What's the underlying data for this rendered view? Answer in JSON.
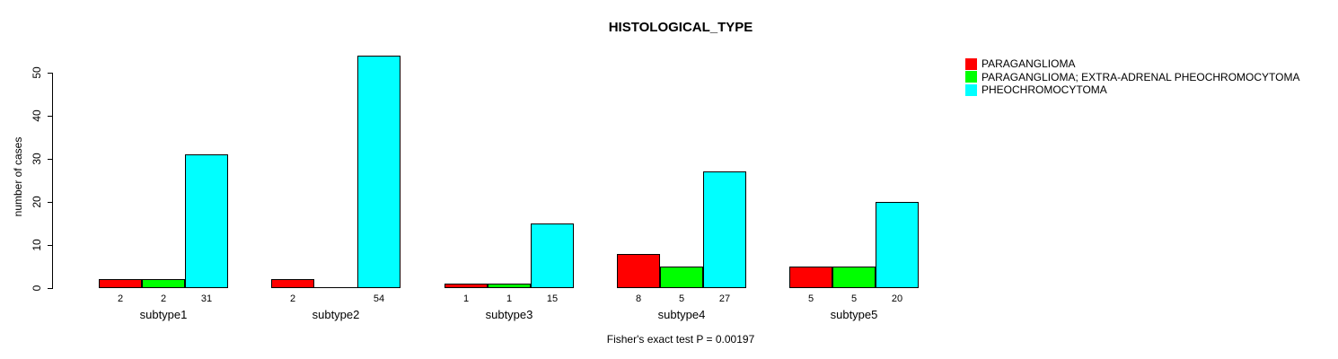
{
  "title": "HISTOLOGICAL_TYPE",
  "footer": "Fisher's exact test P = 0.00197",
  "y_axis": {
    "label": "number of cases",
    "ticks": [
      0,
      10,
      20,
      30,
      40,
      50
    ]
  },
  "x_axis": {
    "categories": [
      "subtype1",
      "subtype2",
      "subtype3",
      "subtype4",
      "subtype5"
    ]
  },
  "legend": {
    "items": [
      {
        "label": "PARAGANGLIOMA",
        "color": "#ff0000"
      },
      {
        "label": "PARAGANGLIOMA; EXTRA-ADRENAL PHEOCHROMOCYTOMA",
        "color": "#00ff00"
      },
      {
        "label": "PHEOCHROMOCYTOMA",
        "color": "#00ffff"
      }
    ]
  },
  "chart_data": {
    "type": "bar",
    "title": "HISTOLOGICAL_TYPE",
    "xlabel": "",
    "ylabel": "number of cases",
    "ylim": [
      0,
      54
    ],
    "yticks": [
      0,
      10,
      20,
      30,
      40,
      50
    ],
    "grid": false,
    "legend_position": "top-right",
    "bar_value_labels": true,
    "annotation": "Fisher's exact test P = 0.00197",
    "categories": [
      "subtype1",
      "subtype2",
      "subtype3",
      "subtype4",
      "subtype5"
    ],
    "series": [
      {
        "name": "PARAGANGLIOMA",
        "color": "#ff0000",
        "values": [
          2,
          2,
          1,
          8,
          5
        ]
      },
      {
        "name": "PARAGANGLIOMA; EXTRA-ADRENAL PHEOCHROMOCYTOMA",
        "color": "#00ff00",
        "values": [
          2,
          0,
          1,
          5,
          5
        ]
      },
      {
        "name": "PHEOCHROMOCYTOMA",
        "color": "#00ffff",
        "values": [
          31,
          54,
          15,
          27,
          20
        ]
      }
    ]
  }
}
